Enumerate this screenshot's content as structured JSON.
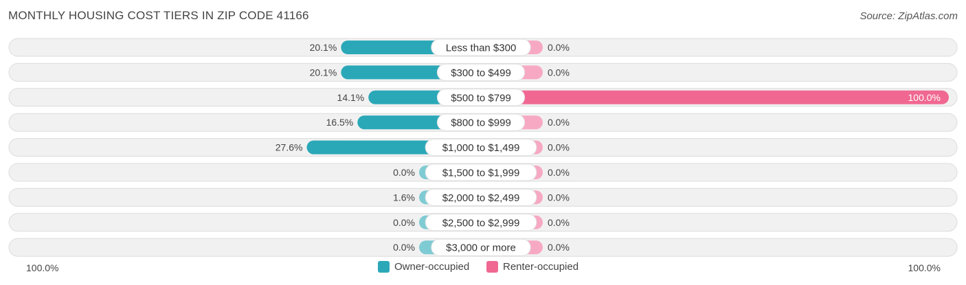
{
  "title": "MONTHLY HOUSING COST TIERS IN ZIP CODE 41166",
  "source": "Source: ZipAtlas.com",
  "axis": {
    "left_label": "100.0%",
    "right_label": "100.0%"
  },
  "legend": [
    {
      "label": "Owner-occupied",
      "color": "#2ba8b8"
    },
    {
      "label": "Renter-occupied",
      "color": "#f06892"
    }
  ],
  "chart_data": {
    "type": "bar",
    "orientation": "horizontal-diverging",
    "categories": [
      "Less than $300",
      "$300 to $499",
      "$500 to $799",
      "$800 to $999",
      "$1,000 to $1,499",
      "$1,500 to $1,999",
      "$2,000 to $2,499",
      "$2,500 to $2,999",
      "$3,000 or more"
    ],
    "series": [
      {
        "name": "Owner-occupied",
        "values": [
          20.1,
          20.1,
          14.1,
          16.5,
          27.6,
          0.0,
          1.6,
          0.0,
          0.0
        ],
        "labels": [
          "20.1%",
          "20.1%",
          "14.1%",
          "16.5%",
          "27.6%",
          "0.0%",
          "1.6%",
          "0.0%",
          "0.0%"
        ]
      },
      {
        "name": "Renter-occupied",
        "values": [
          0.0,
          0.0,
          100.0,
          0.0,
          0.0,
          0.0,
          0.0,
          0.0,
          0.0
        ],
        "labels": [
          "0.0%",
          "0.0%",
          "100.0%",
          "0.0%",
          "0.0%",
          "0.0%",
          "0.0%",
          "0.0%",
          "0.0%"
        ]
      }
    ],
    "xlim": [
      0,
      100
    ],
    "colors": {
      "owner": "#2ba8b8",
      "owner_light": "#7fcbd4",
      "renter": "#f06892",
      "renter_light": "#f7a9c3"
    }
  }
}
